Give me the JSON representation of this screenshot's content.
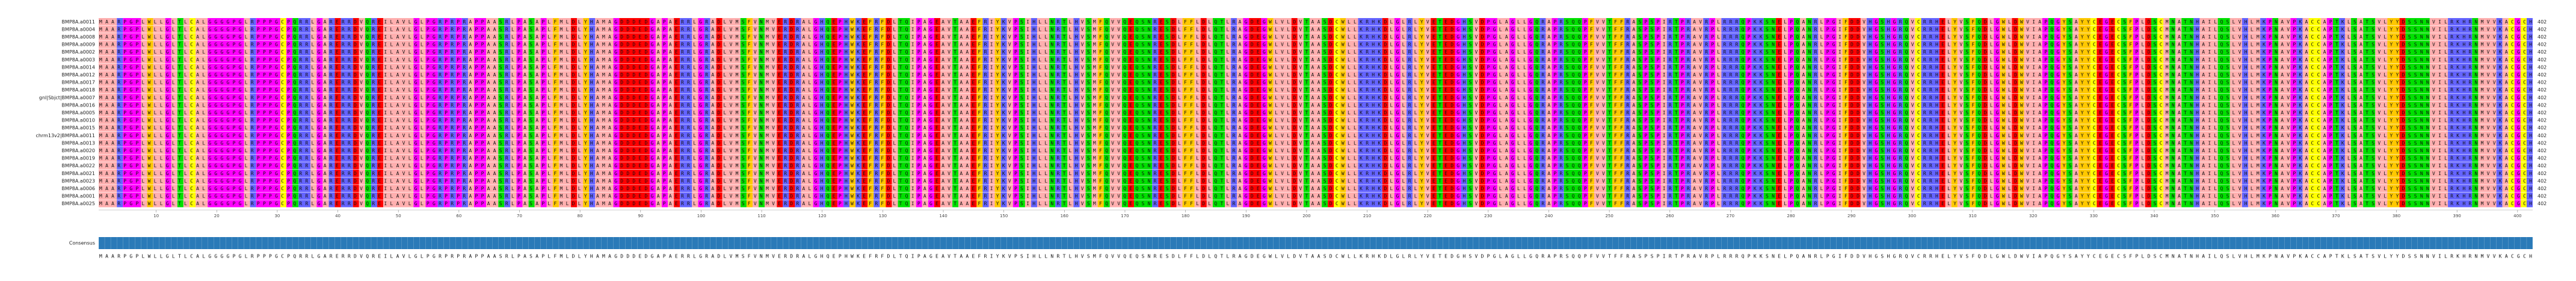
{
  "alignment": {
    "alignment_length": 402,
    "residue_colors": {
      "I": "#ffafaf",
      "L": "#ffafaf",
      "V": "#ffafaf",
      "A": "#ffafaf",
      "M": "#ffafaf",
      "F": "#ffc800",
      "W": "#ffc800",
      "Y": "#ffc800",
      "K": "#6464ff",
      "R": "#6464ff",
      "H": "#6464ff",
      "D": "#ff0000",
      "E": "#ff0000",
      "S": "#00e000",
      "T": "#00e000",
      "N": "#00e000",
      "Q": "#00e000",
      "P": "#ff00ff",
      "G": "#ff00ff",
      "C": "#ffff00"
    },
    "consensus_bar_color": "#2a7ab8",
    "ruler_ticks": [
      10,
      20,
      30,
      40,
      50,
      60,
      70,
      80,
      90,
      100,
      110,
      120,
      130,
      140,
      150,
      160,
      170,
      180,
      190,
      200,
      210,
      220,
      230,
      240,
      250,
      260,
      270,
      280,
      290,
      300,
      310,
      320,
      330,
      340,
      350,
      360,
      370,
      380,
      390,
      400
    ],
    "rows": [
      {
        "name": "BMP8A.a0011",
        "end": 402,
        "sequence": "MAARPGPLWLLGLTLCALGGGGPGLRPPPGCPQRRLGARERRDVQREILAVLGLPGRPRPRAPPAASRLPASAPLFMLDLYHAMAGDDDEDGAPAERRLGRADLVMSFVNMVERDRALGHQEPHWKEFRFDLTQIPAGEAVTAAEFRIYKVPSIHLLNRTLHVSMFQVVQEQSNRESDLFFLDLQTLRAGDEGWLVLDVTAASDCWLLKRHKDLGLRLYVETEDGHSVDPGLAGLLGQRAPRSQQPFVVTFFRASPSPIRTPRAVRPLRRRQPKKSNELPQANRLPGIFDDVHGSHGRQVCRRHELYVSFQDLGWLDWVIAPQGYSAYYCEGECSFPLDSCMNATNHAILQSLVHLMKPNAVPKACCAPTKLSATSVLYYDSSNNVILRKHRNMVVKACGCH"
      },
      {
        "name": "BMP8A.a0004",
        "end": 402,
        "sequence": "MAARPGPLWLLGLTLCALGGGGPGLRPPPGCPQRRLGARERRDVQREILAVLGLPGRPRPRAPPAASRLPASAPLFMLDLYHAMAGDDDEDGAPAERRLGRADLVMSFVNMVERDRALGHQEPHWKEFRFDLTQIPAGEAVTAAEFRIYKVPSIHLLNRTLHVSMFQVVQEQSNRESDLFFLDLQTLRAGDEGWLVLDVTAASDCWLLKRHKDLGLRLYVETEDGHSVDPGLAGLLGQRAPRSQQPFVVTFFRASPSPIRTPRAVRPLRRRQPKKSNELPQANRLPGIFDDVHGSHGRQVCRRHELYVSFQDLGWLDWVIAPQGYSAYYCEGECSFPLDSCMNATNHAILQSLVHLMKPNAVPKACCAPTKLSATSVLYYDSSNNVILRKHRNMVVKACGCH"
      },
      {
        "name": "BMP8A.a0008",
        "end": 402,
        "sequence": "MAARPGPLWLLGLTLCALGGGGPGLRPPPGCPQRRLGARERRDVQREILAVLGLPGRPRPRAPPAASRLPASAPLFMLDLYHAMAGDDDEDGAPAERRLGRADLVMSFVNMVERDRALGHQEPHWKEFRFDLTQIPAGEAVTAAEFRIYKVPSIHLLNRTLHVSMFQVVQEQSNRESDLFFLDLQTLRAGDEGWLVLDVTAASDCWLLKRHKDLGLRLYVETEDGHSVDPGLAGLLGQRAPRSQQPFVVTFFRASPSPIRTPRAVRPLRRRQPKKSNELPQANRLPGIFDDVHGSHGRQVCRRHELYVSFQDLGWLDWVIAPQGYSAYYCEGECSFPLDSCMNATNHAILQSLVHLMKPNAVPKACCAPTKLSATSVLYYDSSNNVILRKHRNMVVKACGCH"
      },
      {
        "name": "BMP8A.a0009",
        "end": 402,
        "sequence": "MAARPGPLWLLGLTLCALGGGGPGLRPPPGCPQRRLGARERRDVQREILAVLGLPGRPRPRAPPAASRLPASAPLFMLDLYHAMAGDDDEDGAPAERRLGRADLVMSFVNMVERDRALGHQEPHWKEFRFDLTQIPAGEAVTAAEFRIYKVPSIHLLNRTLHVSMFQVVQEQSNRESDLFFLDLQTLRAGDEGWLVLDVTAASDCWLLKRHKDLGLRLYVETEDGHSVDPGLAGLLGQRAPRSQQPFVVTFFRASPSPIRTPRAVRPLRRRQPKKSNELPQANRLPGIFDDVHGSHGRQVCRRHELYVSFQDLGWLDWVIAPQGYSAYYCEGECSFPLDSCMNATNHAILQSLVHLMKPNAVPKACCAPTKLSATSVLYYDSSNNVILRKHRNMVVKACGCH"
      },
      {
        "name": "BMP8A.a0002",
        "end": 402,
        "sequence": "MAARPGPLWLLGLTLCALGGGGPGLRPPPGCPQRRLGARERRDVQREILAVLGLPGRPRPRAPPAASRLPASAPLFMLDLYHAMAGDDDEDGAPAERRLGRADLVMSFVNMVERDRALGHQEPHWKEFRFDLTQIPAGEAVTAAEFRIYKVPSIHLLNRTLHVSMFQVVQEQSNRESDLFFLDLQTLRAGDEGWLVLDVTAASDCWLLKRHKDLGLRLYVETEDGHSVDPGLAGLLGQRAPRSQQPFVVTFFRASPSPIRTPRAVRPLRRRQPKKSNELPQANRLPGIFDDVHGSHGRQVCRRHELYVSFQDLGWLDWVIAPQGYSAYYCEGECSFPLDSCMNATNHAILQSLVHLMKPNAVPKACCAPTKLSATSVLYYDSSNNVILRKHRNMVVKACGCH"
      },
      {
        "name": "BMP8A.a0003",
        "end": 402,
        "sequence": "MAARPGPLWLLGLTLCALGGGGPGLRPPPGCPQRRLGARERRDVQREILAVLGLPGRPRPRAPPAASRLPASAPLFMLDLYHAMAGDDDEDGAPAERRLGRADLVMSFVNMVERDRALGHQEPHWKEFRFDLTQIPAGEAVTAAEFRIYKVPSIHLLNRTLHVSMFQVVQEQSNRESDLFFLDLQTLRAGDEGWLVLDVTAASDCWLLKRHKDLGLRLYVETEDGHSVDPGLAGLLGQRAPRSQQPFVVTFFRASPSPIRTPRAVRPLRRRQPKKSNELPQANRLPGIFDDVHGSHGRQVCRRHELYVSFQDLGWLDWVIAPQGYSAYYCEGECSFPLDSCMNATNHAILQSLVHLMKPNAVPKACCAPTKLSATSVLYYDSSNNVILRKHRNMVVKACGCH"
      },
      {
        "name": "BMP8A.a0014",
        "end": 402,
        "sequence": "MAARPGPLWLLGLTLCALGGGGPGLRPPPGCPQRRLGARERRDVQREILAVLGLPGRPRPRAPPAASRLPASAPLFMLDLYHAMAGDDDEDGAPAERRLGRADLVMSFVNMVERDRALGHQEPHWKEFRFDLTQIPAGEAVTAAEFRIYKVPSIHLLNRTLHVSMFQVVQEQSNRESDLFFLDLQTLRAGDEGWLVLDVTAASDCWLLKRHKDLGLRLYVETEDGHSVDPGLAGLLGQRAPRSQQPFVVTFFRASPSPIRTPRAVRPLRRRQPKKSNELPQANRLPGIFDDVHGSHGRQVCRRHELYVSFQDLGWLDWVIAPQGYSAYYCEGECSFPLDSCMNATNHAILQSLVHLMKPNAVPKACCAPTKLSATSVLYYDSSNNVILRKHRNMVVKACGCH"
      },
      {
        "name": "BMP8A.a0012",
        "end": 402,
        "sequence": "MAARPGPLWLLGLTLCALGGGGPGLRPPPGCPQRRLGARERRDVQREILAVLGLPGRPRPRAPPAASRLPASAPLFMLDLYHAMAGDDDEDGAPAERRLGRADLVMSFVNMVERDRALGHQEPHWKEFRFDLTQIPAGEAVTAAEFRIYKVPSIHLLNRTLHVSMFQVVQEQSNRESDLFFLDLQTLRAGDEGWLVLDVTAASDCWLLKRHKDLGLRLYVETEDGHSVDPGLAGLLGQRAPRSQQPFVVTFFRASPSPIRTPRAVRPLRRRQPKKSNELPQANRLPGIFDDVHGSHGRQVCRRHELYVSFQDLGWLDWVIAPQGYSAYYCEGECSFPLDSCMNATNHAILQSLVHLMKPNAVPKACCAPTKLSATSVLYYDSSNNVILRKHRNMVVKACGCH"
      },
      {
        "name": "BMP8A.a0017",
        "end": 402,
        "sequence": "MAARPGPLWLLGLTLCALGGGGPGLRPPPGCPQRRLGARERRDVQREILAVLGLPGRPRPRAPPAASRLPASAPLFMLDLYHAMAGDDDEDGAPAERRLGRADLVMSFVNMVERDRALGHQEPHWKEFRFDLTQIPAGEAVTAAEFRIYKVPSIHLLNRTLHVSMFQVVQEQSNRESDLFFLDLQTLRAGDEGWLVLDVTAASDCWLLKRHKDLGLRLYVETEDGHSVDPGLAGLLGQRAPRSQQPFVVTFFRASPSPIRTPRAVRPLRRRQPKKSNELPQANRLPGIFDDVHGSHGRQVCRRHELYVSFQDLGWLDWVIAPQGYSAYYCEGECSFPLDSCMNATNHAILQSLVHLMKPNAVPKACCAPTKLSATSVLYYDSSNNVILRKHRNMVVKACGCH"
      },
      {
        "name": "BMP8A.a0018",
        "end": 402,
        "sequence": "MAARPGPLWLLGLTLCALGGGGPGLRPPPGCPQRRLGARERRDVQREILAVLGLPGRPRPRAPPAASRLPASAPLFMLDLYHAMAGDDDEDGAPAERRLGRADLVMSFVNMVERDRALGHQEPHWKEFRFDLTQIPAGEAVTAAEFRIYKVPSIHLLNRTLHVSMFQVVQEQSNRESDLFFLDLQTLRAGDEGWLVLDVTAASDCWLLKRHKDLGLRLYVETEDGHSVDPGLAGLLGQRAPRSQQPFVVTFFRASPSPIRTPRAVRPLRRRQPKKSNELPQANRLPGIFDDVHGSHGRQVCRRHELYVSFQDLGWLDWVIAPQGYSAYYCEGECSFPLDSCMNATNHAILQSLVHLMKPNAVPKACCAPTKLSATSVLYYDSSNNVILRKHRNMVVKACGCH"
      },
      {
        "name": "gnl|Sbjct|BMP8A.a0007",
        "end": 402,
        "sequence": "MAARPGPLWLLGLTLCALGGGGPGLRPPPGCPQRRLGARERRDVQREILAVLGLPGRPRPRAPPAASRLPASAPLFMLDLYHAMAGDDDEDGAPAERRLGRADLVMSFVNMVERDRALGHQEPHWKEFRFDLTQIPAGEAVTAAEFRIYKVPSIHLLNRTLHVSMFQVVQEQSNRESDLFFLDLQTLRAGDEGWLVLDVTAASDCWLLKRHKDLGLRLYVETEDGHSVDPGLAGLLGQRAPRSQQPFVVTFFRASPSPIRTPRAVRPLRRRQPKKSNELPQANRLPGIFDDVHGSHGRQVCRRHELYVSFQDLGWLDWVIAPQGYSAYYCEGECSFPLDSCMNATNHAILQSLVHLMKPNAVPKACCAPTKLSATSVLYYDSSNNVILRKHRNMVVKACGCH"
      },
      {
        "name": "BMP8A.a0016",
        "end": 402,
        "sequence": "MAARPGPLWLLGLTLCALGGGGPGLRPPPGCPQRRLGARERRDVQREILAVLGLPGRPRPRAPPAASRLPASAPLFMLDLYHAMAGDDDEDGAPAERRLGRADLVMSFVNMVERDRALGHQEPHWKEFRFDLTQIPAGEAVTAAEFRIYKVPSIHLLNRTLHVSMFQVVQEQSNRESDLFFLDLQTLRAGDEGWLVLDVTAASDCWLLKRHKDLGLRLYVETEDGHSVDPGLAGLLGQRAPRSQQPFVVTFFRASPSPIRTPRAVRPLRRRQPKKSNELPQANRLPGIFDDVHGSHGRQVCRRHELYVSFQDLGWLDWVIAPQGYSAYYCEGECSFPLDSCMNATNHAILQSLVHLMKPNAVPKACCAPTKLSATSVLYYDSSNNVILRKHRNMVVKACGCH"
      },
      {
        "name": "BMP8A.a0005",
        "end": 402,
        "sequence": "MAARPGPLWLLGLTLCALGGGGPGLRPPPGCPQRRLGARERRDVQREILAVLGLPGRPRPRAPPAASRLPASAPLFMLDLYHAMAGDDDEDGAPAERRLGRADLVMSFVNMVERDRALGHQEPHWKEFRFDLTQIPAGEAVTAAEFRIYKVPSIHLLNRTLHVSMFQVVQEQSNRESDLFFLDLQTLRAGDEGWLVLDVTAASDCWLLKRHKDLGLRLYVETEDGHSVDPGLAGLLGQRAPRSQQPFVVTFFRASPSPIRTPRAVRPLRRRQPKKSNELPQANRLPGIFDDVHGSHGRQVCRRHELYVSFQDLGWLDWVIAPQGYSAYYCEGECSFPLDSCMNATNHAILQSLVHLMKPNAVPKACCAPTKLSATSVLYYDSSNNVILRKHRNMVVKACGCH"
      },
      {
        "name": "BMP8A.a0010",
        "end": 402,
        "sequence": "MAARPGPLWLLGLTLCALGGGGPGLRPPPGCPQRRLGARERRDVQREILAVLGLPGRPRPRAPPAASRLPASAPLFMLDLYHAMAGDDDEDGAPAERRLGRADLVMSFVNMVERDRALGHQEPHWKEFRFDLTQIPAGEAVTAAEFRIYKVPSIHLLNRTLHVSMFQVVQEQSNRESDLFFLDLQTLRAGDEGWLVLDVTAASDCWLLKRHKDLGLRLYVETEDGHSVDPGLAGLLGQRAPRSQQPFVVTFFRASPSPIRTPRAVRPLRRRQPKKSNELPQANRLPGIFDDVHGSHGRQVCRRHELYVSFQDLGWLDWVIAPQGYSAYYCEGECSFPLDSCMNATNHAILQSLVHLMKPNAVPKACCAPTKLSATSVLYYDSSNNVILRKHRNMVVKACGCH"
      },
      {
        "name": "BMP8A.a0015",
        "end": 402,
        "sequence": "MAARPGPLWLLGLTLCALGGGGPGLRPPPGCPQRRLGARERRDVQREILAVLGLPGRPRPRAPPAASRLPASAPLFMLDLYHAMAGDDDEDGAPAERRLGRADLVMSFVNMVERDRALGHQEPHWKEFRFDLTQIPAGEAVTAAEFRIYKVPSIHLLNRTLHVSMFQVVQEQSNRESDLFFLDLQTLRAGDEGWLVLDVTAASDCWLLKRHKDLGLRLYVETEDGHSVDPGLAGLLGQRAPRSQQPFVVTFFRASPSPIRTPRAVRPLRRRQPKKSNELPQANRLPGIFDDVHGSHGRQVCRRHELYVSFQDLGWLDWVIAPQGYSAYYCEGECSFPLDSCMNATNHAILQSLVHLMKPNAVPKACCAPTKLSATSVLYYDSSNNVILRKHRNMVVKACGCH"
      },
      {
        "name": "chrm13v2|BMP8A.a0011",
        "end": 402,
        "sequence": "MAARPGPLWLLGLTLCALGGGGPGLRPPPGCPQRRLGARERRDVQREILAVLGLPGRPRPRAPPAASRLPASAPLFMLDLYHAMAGDDDEDGAPAERRLGRADLVMSFVNMVERDRALGHQEPHWKEFRFDLTQIPAGEAVTAAEFRIYKVPSIHLLNRTLHVSMFQVVQEQSNRESDLFFLDLQTLRAGDEGWLVLDVTAASDCWLLKRHKDLGLRLYVETEDGHSVDPGLAGLLGQRAPRSQQPFVVTFFRASPSPIRTPRAVRPLRRRQPKKSNELPQANRLPGIFDDVHGSHGRQVCRRHELYVSFQDLGWLDWVIAPQGYSAYYCEGECSFPLDSCMNATNHAILQSLVHLMKPNAVPKACCAPTKLSATSVLYYDSSNNVILRKHRNMVVKACGCH"
      },
      {
        "name": "BMP8A.a0013",
        "end": 402,
        "sequence": "MAARPGPLWLLGLTLCALGGGGPGLRPPPGCPQRRLGARERRDVQREILAVLGLPGRPRPRAPPAASRLPASAPLFMLDLYHAMAGDDDEDGAPAERRLGRADLVMSFVNMVERDRALGHQEPHWKEFRFDLTQIPAGEAVTAAEFRIYKVPSIHLLNRTLHVSMFQVVQEQSNRESDLFFLDLQTLRAGDEGWLVLDVTAASDCWLLKRHKDLGLRLYVETEDGHSVDPGLAGLLGQRAPRSQQPFVVTFFRASPSPIRTPRAVRPLRRRQPKKSNELPQANRLPGIFDDVHGSHGRQVCRRHELYVSFQDLGWLDWVIAPQGYSAYYCEGECSFPLDSCMNATNHAILQSLVHLMKPNAVPKACCAPTKLSATSVLYYDSSNNVILRKHRNMVVKACGCH"
      },
      {
        "name": "BMP8A.a0020",
        "end": 402,
        "sequence": "MAARPGPLWLLGLTLCALGGGGPGLRPPPGCPQRRLGARERRDVQREILAVLGLPGRPRPRAPPAASRLPASAPLFMLDLYHAMAGDDDEDGAPAERRLGRADLVMSFVNMVERDRALGHQEPHWKEFRFDLTQIPAGEAVTAAEFRIYKVPSIHLLNRTLHVSMFQVVQEQSNRESDLFFLDLQTLRAGDEGWLVLDVTAASDCWLLKRHKDLGLRLYVETEDGHSVDPGLAGLLGQRAPRSQQPFVVTFFRASPSPIRTPRAVRPLRRRQPKKSNELPQANRLPGIFDDVHGSHGRQVCRRHELYVSFQDLGWLDWVIAPQGYSAYYCEGECSFPLDSCMNATNHAILQSLVHLMKPNAVPKACCAPTKLSATSVLYYDSSNNVILRKHRNMVVKACGCH"
      },
      {
        "name": "BMP8A.a0019",
        "end": 402,
        "sequence": "MAARPGPLWLLGLTLCALGGGGPGLRPPPGCPQRRLGARERRDVQREILAVLGLPGRPRPRAPPAASRLPASAPLFMLDLYHAMAGDDDEDGAPAERRLGRADLVMSFVNMVERDRALGHQEPHWKEFRFDLTQIPAGEAVTAAEFRIYKVPSIHLLNRTLHVSMFQVVQEQSNRESDLFFLDLQTLRAGDEGWLVLDVTAASDCWLLKRHKDLGLRLYVETEDGHSVDPGLAGLLGQRAPRSQQPFVVTFFRASPSPIRTPRAVRPLRRRQPKKSNELPQANRLPGIFDDVHGSHGRQVCRRHELYVSFQDLGWLDWVIAPQGYSAYYCEGECSFPLDSCMNATNHAILQSLVHLMKPNAVPKACCAPTKLSATSVLYYDSSNNVILRKHRNMVVKACGCH"
      },
      {
        "name": "BMP8A.a0022",
        "end": 402,
        "sequence": "MAARPGPLWLLGLTLCALGGGGPGLRPPPGCPQRRLGARERRDVQREILAVLGLPGRPRPRAPPAASRLPASAPLFMLDLYHAMAGDDDEDGAPAERRLGRADLVMSFVNMVERDRALGHQEPHWKEFRFDLTQIPAGEAVTAAEFRIYKVPSIHLLNRTLHVSMFQVVQEQSNRESDLFFLDLQTLRAGDEGWLVLDVTAASDCWLLKRHKDLGLRLYVETEDGHSVDPGLAGLLGQRAPRSQQPFVVTFFRASPSPIRTPRAVRPLRRRQPKKSNELPQANRLPGIFDDVHGSHGRQVCRRHELYVSFQDLGWLDWVIAPQGYSAYYCEGECSFPLDSCMNATNHAILQSLVHLMKPNAVPKACCAPTKLSATSVLYYDSSNNVILRKHRNMVVKACGCH"
      },
      {
        "name": "BMP8A.a0021",
        "end": 402,
        "sequence": "MAARPGPLWLLGLTLCALGGGGPGLRPPPGCPQRRLGARERRDVQREILAVLGLPGRPRPRAPPAASRLPASAPLFMLDLYHAMAGDDDEDGAPAERRLGRADLVMSFVNMVERDRALGHQEPHWKEFRFDLTQIPAGEAVTAAEFRIYKVPSIHLLNRTLHVSMFQVVQEQSNRESDLFFLDLQTLRAGDEGWLVLDVTAASDCWLLKRHKDLGLRLYVETEDGHSVDPGLAGLLGQRAPRSQQPFVVTFFRASPSPIRTPRAVRPLRRRQPKKSNELPQANRLPGIFDDVHGSHGRQVCRRHELYVSFQDLGWLDWVIAPQGYSAYYCEGECSFPLDSCMNATNHAILQSLVHLMKPNAVPKACCAPTKLSATSVLYYDSSNNVILRKHRNMVVKACGCH"
      },
      {
        "name": "BMP8A.a0023",
        "end": 402,
        "sequence": "MAARPGPLWLLGLTLCALGGGGPGLRPPPGCPQRRLGARERRDVQREILAVLGLPGRPRPRAPPAASRLPASAPLFMLDLYHAMAGDDDEDGAPAERRLGRADLVMSFVNMVERDRALGHQEPHWKEFRFDLTQIPAGEAVTAAEFRIYKVPSIHLLNRTLHVSMFQVVQEQSNRESDLFFLDLQTLRAGDEGWLVLDVTAASDCWLLKRHKDLGLRLYVETEDGHSVDPGLAGLLGQRAPRSQQPFVVTFFRASPSPIRTPRAVRPLRRRQPKKSNELPQANRLPGIFDDVHGSHGRQVCRRHELYVSFQDLGWLDWVIAPQGYSAYYCEGECSFPLDSCMNATNHAILQSLVHLMKPNAVPKACCAPTKLSATSVLYYDSSNNVILRKHRNMVVKACGCH"
      },
      {
        "name": "BMP8A.a0006",
        "end": 402,
        "sequence": "MAARPGPLWLLGLTLCALGGGGPGLRPPPGCPQRRLGARERRDVQREILAVLGLPGRPRPRAPPAASRLPASAPLFMLDLYHAMAGDDDEDGAPAERRLGRADLVMSFVNMVERDRALGHQEPHWKEFRFDLTQIPAGEAVTAAEFRIYKVPSIHLLNRTLHVSMFQVVQEQSNRESDLFFLDLQTLRAGDEGWLVLDVTAASDCWLLKRHKDLGLRLYVETEDGHSVDPGLAGLLGQRAPRSQQPFVVTFFRASPSPIRTPRAVRPLRRRQPKKSNELPQANRLPGIFDDVHGSHGRQVCRRHELYVSFQDLGWLDWVIAPQGYSAYYCEGECSFPLDSCMNATNHAILQSLVHLMKPNAVPKACCAPTKLSATSVLYYDSSNNVILRKHRNMVVKACGCH"
      },
      {
        "name": "BMP8A.a0001",
        "end": 402,
        "sequence": "MAARPGPLWLLGLTLCALGGGGPGLRPPPGCPQRRLGARERRDVQREILAVLGLPGRPRPRAPPAASRLPASAPLFMLDLYHAMAGDDDEDGAPAERRLGRADLVMSFVNMVERDRALGHQEPHWKEFRFDLTQIPAGEAVTAAEFRIYKVPSIHLLNRTLHVSMFQVVQEQSNRESDLFFLDLQTLRAGDEGWLVLDVTAASDCWLLKRHKDLGLRLYVETEDGHSVDPGLAGLLGQRAPRSQQPFVVTFFRASPSPIRTPRAVRPLRRRQPKKSNELPQANRLPGIFDDVHGSHGRQVCRRHELYVSFQDLGWLDWVIAPQGYSAYYCEGECSFPLDSCMNATNHAILQSLVHLMKPNAVPKACCAPTKLSATSVLYYDSSNNVILRKHRNMVVKACGCH"
      },
      {
        "name": "BMP8A.a0025",
        "end": 402,
        "sequence": "MAARPGPLWLLGLTLCALGGGGPGLRPPPGCPQRRLGARERRDVQREILAVLGLPGRPRPRAPPAASRLPASAPLFMLDLYHAMAGDDDEDGAPAERRLGRADLVMSFVNMVERDRALGHQEPHWKEFRFDLTQIPAGEAVTAAEFRIYKVPSIHLLNRTLHVSMFQVVQEQSNRESDLFFLDLQTLRAGDEGWLVLDVTAASDCWLLKRHKDLGLRLYVETEDGHSVDPGLAGLLGQRAPRSQQPFVVTFFRASPSPIRTPRAVRPLRRRQPKKSNELPQANRLPGIFDDVHGSHGRQVCRRHELYVSFQDLGWLDWVIAPQGYSAYYCEGECSFPLDSCMNATNHAILQSLVHLMKPNAVPKACCAPTKLSATSVLYYDSSNNVILRKHRNMVVKACGCH"
      }
    ],
    "consensus_label": "Consensus",
    "consensus": "MAARPGPLWLLGLTLCALGGGGPGLRPPPGCPQRRLGARERRDVQREILAVLGLPGRPRPRAPPAASRLPASAPLFMLDLYHAMAGDDDEDGAPAERRLGRADLVMSFVNMVERDRALGHQEPHWKEFRFDLTQIPAGEAVTAAEFRIYKVPSIHLLNRTLHVSMFQVVQEQSNRESDLFFLDLQTLRAGDEGWLVLDVTAASDCWLLKRHKDLGLRLYVETEDGHSVDPGLAGLLGQRAPRSQQPFVVTFFRASPSPIRTPRAVRPLRRRQPKKSNELPQANRLPGIFDDVHGSHGRQVCRRHELYVSFQDLGWLDWVIAPQGYSAYYCEGECSFPLDSCMNATNHAILQSLVHLMKPNAVPKACCAPTKLSATSVLYYDSSNNVILRKHRNMVVKACGCH"
  }
}
